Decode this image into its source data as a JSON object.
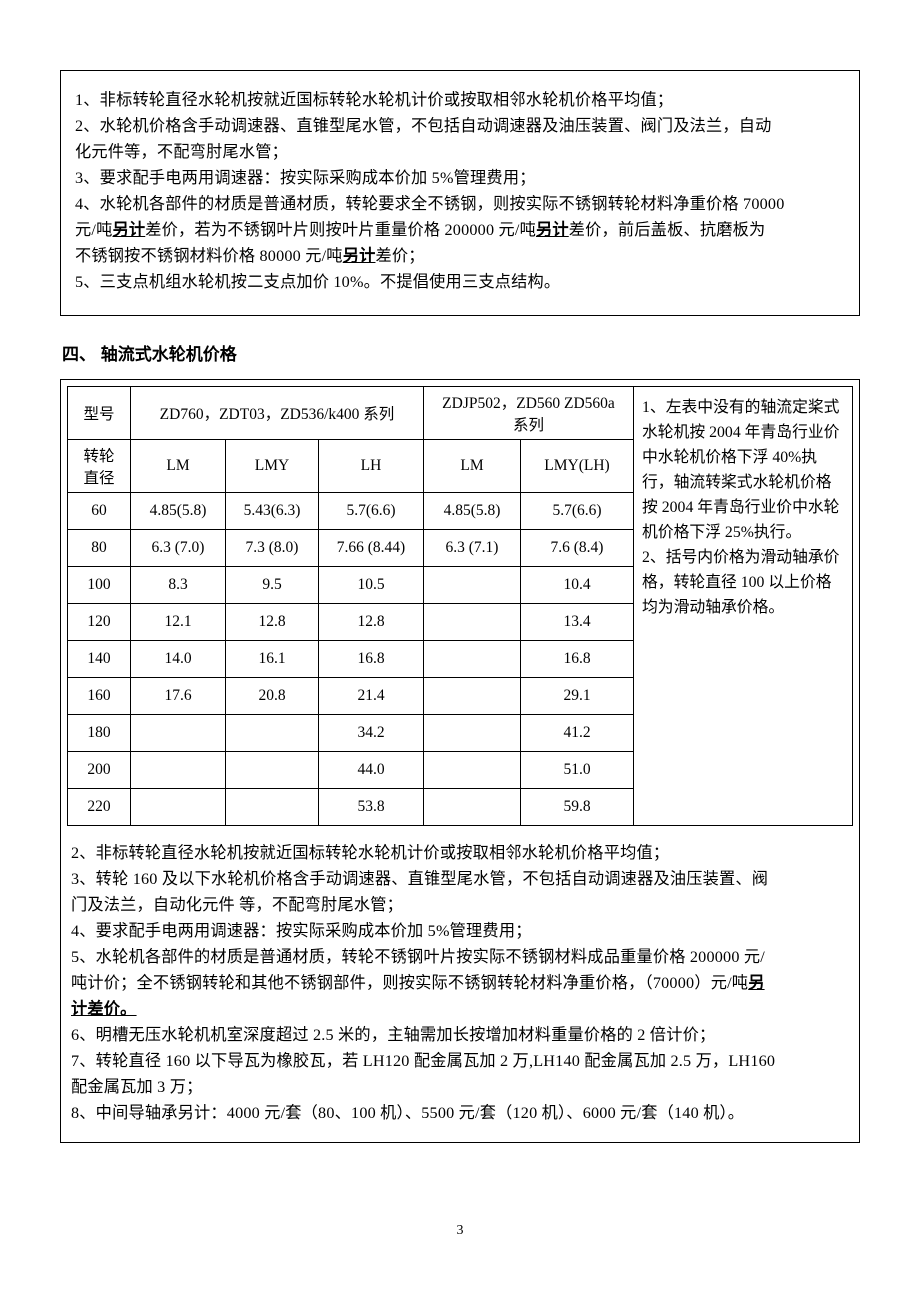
{
  "top_box": {
    "l1": "1、非标转轮直径水轮机按就近国标转轮水轮机计价或按取相邻水轮机价格平均值；",
    "l2a": "2、水轮机价格含手动调速器、直锥型尾水管，不包括自动调速器及油压装置、阀门及法兰，自动",
    "l2b": "化元件等，不配弯肘尾水管；",
    "l3": "3、要求配手电两用调速器：按实际采购成本价加 5%管理费用；",
    "l4a": "4、水轮机各部件的材质是普通材质，转轮要求全不锈钢，则按实际不锈钢转轮材料净重价格 70000",
    "l4b_pre": "元/吨",
    "l4b_u1": "另计",
    "l4b_mid": "差价，若为不锈钢叶片则按叶片重量价格 200000 元/吨",
    "l4b_u2": "另计",
    "l4b_post": "差价，前后盖板、抗磨板为",
    "l4c_pre": "不锈钢按不锈钢材料价格 80000 元/吨",
    "l4c_u": "另计",
    "l4c_post": "差价；",
    "l5": "5、三支点机组水轮机按二支点加价 10%。不提倡使用三支点结构。"
  },
  "section_title": "四、  轴流式水轮机价格",
  "table": {
    "col_model": "型号",
    "head_g1": "ZD760，ZDT03，ZD536/k400 系列",
    "head_g2a": "ZDJP502，ZD560    ZD560a",
    "head_g2b": "系列",
    "col_dia_a": "转轮",
    "col_dia_b": "直径",
    "sub1": "LM",
    "sub2": "LMY",
    "sub3": "LH",
    "sub4": "LM",
    "sub5": "LMY(LH)",
    "rows": [
      {
        "d": "60",
        "c1": "4.85(5.8)",
        "c2": "5.43(6.3)",
        "c3": "5.7(6.6)",
        "c4": "4.85(5.8)",
        "c5": "5.7(6.6)"
      },
      {
        "d": "80",
        "c1": "6.3 (7.0)",
        "c2": "7.3 (8.0)",
        "c3": "7.66 (8.44)",
        "c4": "6.3 (7.1)",
        "c5": "7.6 (8.4)"
      },
      {
        "d": "100",
        "c1": "8.3",
        "c2": "9.5",
        "c3": "10.5",
        "c4": "",
        "c5": "10.4"
      },
      {
        "d": "120",
        "c1": "12.1",
        "c2": "12.8",
        "c3": "12.8",
        "c4": "",
        "c5": "13.4"
      },
      {
        "d": "140",
        "c1": "14.0",
        "c2": "16.1",
        "c3": "16.8",
        "c4": "",
        "c5": "16.8"
      },
      {
        "d": "160",
        "c1": "17.6",
        "c2": "20.8",
        "c3": "21.4",
        "c4": "",
        "c5": "29.1"
      },
      {
        "d": "180",
        "c1": "",
        "c2": "",
        "c3": "34.2",
        "c4": "",
        "c5": "41.2"
      },
      {
        "d": "200",
        "c1": "",
        "c2": "",
        "c3": "44.0",
        "c4": "",
        "c5": "51.0"
      },
      {
        "d": "220",
        "c1": "",
        "c2": "",
        "c3": "53.8",
        "c4": "",
        "c5": "59.8"
      }
    ]
  },
  "side": {
    "s1": "1、左表中没有的轴流定桨式水轮机按 2004 年青岛行业价中水轮机价格下浮 40%执行，轴流转桨式水轮机价格按 2004 年青岛行业价中水轮机价格下浮 25%执行。",
    "s2": "2、括号内价格为滑动轴承价格，转轮直径 100 以上价格均为滑动轴承价格。"
  },
  "bottom": {
    "b2": "2、非标转轮直径水轮机按就近国标转轮水轮机计价或按取相邻水轮机价格平均值；",
    "b3a": "3、转轮 160 及以下水轮机价格含手动调速器、直锥型尾水管，不包括自动调速器及油压装置、阀",
    "b3b": "门及法兰，自动化元件 等，不配弯肘尾水管；",
    "b4": "4、要求配手电两用调速器：按实际采购成本价加 5%管理费用；",
    "b5a": "5、水轮机各部件的材质是普通材质，转轮不锈钢叶片按实际不锈钢材料成品重量价格 200000 元/",
    "b5b_pre": "吨计价；全不锈钢转轮和其他不锈钢部件，则按实际不锈钢转轮材料净重价格，（70000）元/吨",
    "b5b_u": "另",
    "b5c_u": "计差价。",
    "b6": " 6、明槽无压水轮机机室深度超过 2.5 米的，主轴需加长按增加材料重量价格的 2 倍计价；",
    "b7a": "7、转轮直径 160 以下导瓦为橡胶瓦，若 LH120 配金属瓦加 2 万,LH140 配金属瓦加 2.5 万，LH160",
    "b7b": "配金属瓦加 3 万；",
    "b8": "8、中间导轴承另计：4000 元/套（80、100 机）、5500 元/套（120 机）、6000 元/套（140 机）。"
  },
  "page_num": "3",
  "widths": {
    "c0": 58,
    "c1": 90,
    "c2": 88,
    "c3": 100,
    "c4": 92,
    "c5": 108
  }
}
